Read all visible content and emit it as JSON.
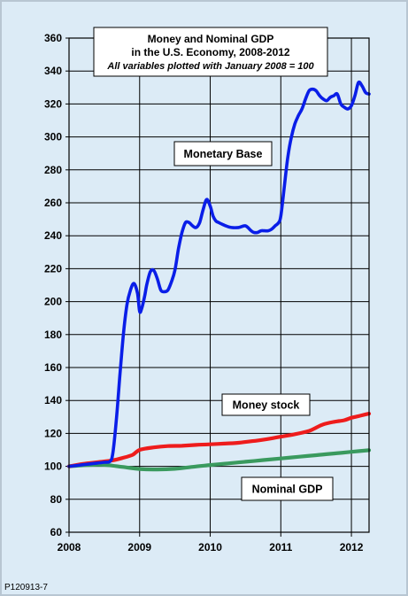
{
  "chart_data": {
    "type": "line",
    "title": "Money and Nominal GDP",
    "title_line2": "in the U.S. Economy, 2008-2012",
    "subtitle": "All variables plotted with January 2008 = 100",
    "xlabel": "",
    "ylabel": "",
    "xlim": [
      2008,
      2012.25
    ],
    "ylim": [
      60,
      360
    ],
    "x_ticks": [
      2008,
      2009,
      2010,
      2011,
      2012
    ],
    "y_ticks": [
      60,
      80,
      100,
      120,
      140,
      160,
      180,
      200,
      220,
      240,
      260,
      280,
      300,
      320,
      340,
      360
    ],
    "grid": true,
    "series": [
      {
        "name": "Monetary Base",
        "color": "#0a1ee8",
        "x": [
          2008.0,
          2008.1,
          2008.2,
          2008.3,
          2008.4,
          2008.5,
          2008.58,
          2008.62,
          2008.67,
          2008.72,
          2008.77,
          2008.82,
          2008.87,
          2008.92,
          2008.97,
          2009.0,
          2009.03,
          2009.07,
          2009.1,
          2009.15,
          2009.2,
          2009.25,
          2009.3,
          2009.35,
          2009.4,
          2009.45,
          2009.5,
          2009.55,
          2009.6,
          2009.65,
          2009.7,
          2009.75,
          2009.8,
          2009.85,
          2009.9,
          2009.95,
          2010.0,
          2010.04,
          2010.08,
          2010.12,
          2010.17,
          2010.22,
          2010.3,
          2010.4,
          2010.5,
          2010.58,
          2010.62,
          2010.67,
          2010.72,
          2010.77,
          2010.82,
          2010.87,
          2010.92,
          2010.97,
          2011.0,
          2011.05,
          2011.1,
          2011.15,
          2011.2,
          2011.25,
          2011.3,
          2011.35,
          2011.4,
          2011.45,
          2011.5,
          2011.55,
          2011.6,
          2011.65,
          2011.7,
          2011.75,
          2011.8,
          2011.85,
          2011.9,
          2011.95,
          2012.0,
          2012.05,
          2012.1,
          2012.15,
          2012.2,
          2012.25
        ],
        "values": [
          100,
          100.5,
          101,
          101.5,
          102,
          102.5,
          103,
          108,
          128,
          155,
          180,
          198,
          207,
          211,
          205,
          194,
          196,
          203,
          210,
          218,
          219,
          214,
          207,
          206,
          207,
          212,
          219,
          232,
          242,
          248,
          248,
          246,
          245,
          248,
          256,
          262,
          258,
          252,
          249,
          248,
          247,
          246,
          245,
          245,
          246,
          243,
          242,
          242,
          243,
          243,
          243,
          244,
          246,
          248,
          252,
          270,
          288,
          300,
          308,
          313,
          317,
          323,
          328,
          329,
          328,
          325,
          323,
          322,
          324,
          325,
          326,
          320,
          318,
          317,
          319,
          325,
          333,
          331,
          327,
          326
        ]
      },
      {
        "name": "Money stock",
        "color": "#ee1c1c",
        "x": [
          2008.0,
          2008.2,
          2008.4,
          2008.6,
          2008.75,
          2008.9,
          2009.0,
          2009.2,
          2009.4,
          2009.6,
          2009.8,
          2010.0,
          2010.2,
          2010.4,
          2010.6,
          2010.8,
          2011.0,
          2011.2,
          2011.4,
          2011.5,
          2011.6,
          2011.75,
          2011.9,
          2012.0,
          2012.1,
          2012.25
        ],
        "values": [
          100,
          101.5,
          102.5,
          103.5,
          105,
          107,
          110,
          111.5,
          112.3,
          112.5,
          113,
          113.4,
          113.8,
          114.3,
          115.3,
          116.5,
          118,
          119.5,
          121.5,
          123.5,
          125.5,
          127,
          128,
          129.5,
          130.5,
          132
        ]
      },
      {
        "name": "Nominal GDP",
        "color": "#3a9a5e",
        "x": [
          2008.0,
          2008.25,
          2008.5,
          2008.75,
          2009.0,
          2009.25,
          2009.5,
          2009.75,
          2010.0,
          2010.25,
          2010.5,
          2010.75,
          2011.0,
          2011.25,
          2011.5,
          2011.75,
          2012.0,
          2012.25
        ],
        "values": [
          100,
          100.8,
          100.9,
          99.7,
          98.4,
          98.1,
          98.5,
          99.7,
          100.8,
          101.8,
          102.8,
          103.8,
          104.8,
          105.8,
          106.8,
          107.8,
          108.8,
          109.8
        ]
      }
    ],
    "annotations": [
      {
        "text": "Monetary Base",
        "series": 0
      },
      {
        "text": "Money stock",
        "series": 1
      },
      {
        "text": "Nominal GDP",
        "series": 2
      }
    ]
  },
  "footer_code": "P120913-7"
}
